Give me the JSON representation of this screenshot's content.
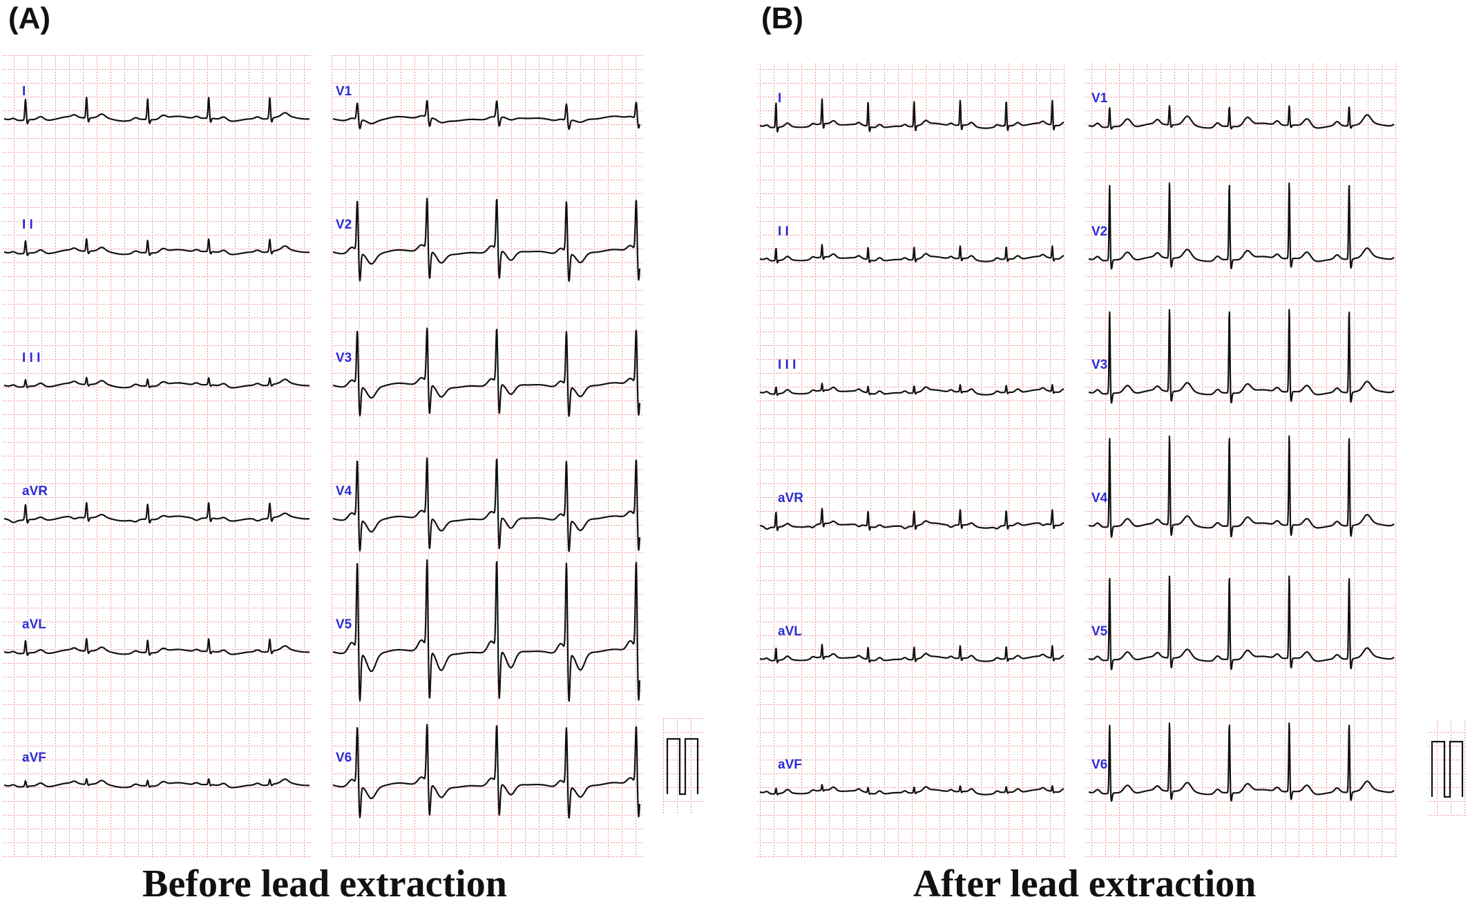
{
  "panels": [
    {
      "id": "A",
      "label": "(A)",
      "caption": "Before lead extraction",
      "left_column": [
        "I",
        "I I",
        "I I I",
        "aVR",
        "aVL",
        "aVF"
      ],
      "right_column": [
        "V1",
        "V2",
        "V3",
        "V4",
        "V5",
        "V6"
      ]
    },
    {
      "id": "B",
      "label": "(B)",
      "caption": "After lead extraction",
      "left_column": [
        "I",
        "I I",
        "I I I",
        "aVR",
        "aVL",
        "aVF"
      ],
      "right_column": [
        "V1",
        "V2",
        "V3",
        "V4",
        "V5",
        "V6"
      ]
    }
  ],
  "colors": {
    "grid": "#f26b6b",
    "trace": "#111111",
    "lead_label": "#2b2bd6"
  }
}
